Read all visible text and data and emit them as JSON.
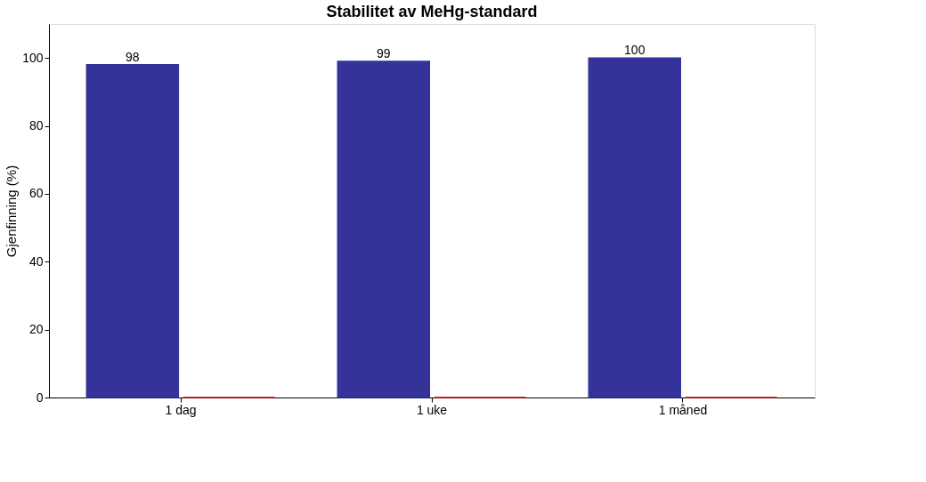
{
  "chart_data": {
    "type": "bar",
    "title": "Stabilitet av MeHg-standard",
    "ylabel": "Gjenfinning (%)",
    "categories": [
      "1 dag",
      "1 uke",
      "1 måned"
    ],
    "series": [
      {
        "color": "#333399",
        "values": [
          98,
          99,
          100
        ],
        "value_labels": [
          "98",
          "99",
          "100"
        ]
      },
      {
        "color": "#c00000",
        "values": [
          0,
          0,
          0
        ]
      }
    ],
    "ylim": [
      0,
      110
    ],
    "yticks": [
      0,
      20,
      40,
      60,
      80,
      100
    ],
    "grid": false,
    "legend": false
  }
}
